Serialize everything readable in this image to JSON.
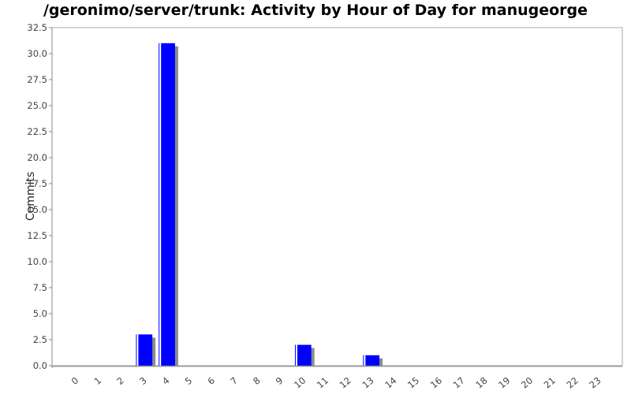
{
  "chart_data": {
    "type": "bar",
    "title": "/geronimo/server/trunk: Activity by Hour of Day for manugeorge",
    "xlabel": "",
    "ylabel": "Commits",
    "categories": [
      "0",
      "1",
      "2",
      "3",
      "4",
      "5",
      "6",
      "7",
      "8",
      "9",
      "10",
      "11",
      "12",
      "13",
      "14",
      "15",
      "16",
      "17",
      "18",
      "19",
      "20",
      "21",
      "22",
      "23"
    ],
    "values": [
      0,
      0,
      0,
      3,
      31,
      0,
      0,
      0,
      0,
      0,
      2,
      0,
      0,
      1,
      0,
      0,
      0,
      0,
      0,
      0,
      0,
      0,
      0,
      0
    ],
    "ylim": [
      0,
      32.5
    ],
    "yticks": [
      "0.0",
      "2.5",
      "5.0",
      "7.5",
      "10.0",
      "12.5",
      "15.0",
      "17.5",
      "20.0",
      "22.5",
      "25.0",
      "27.5",
      "30.0",
      "32.5"
    ],
    "grid": false,
    "colors": {
      "bar": "#0000ff",
      "shadow": "#8c8c8c",
      "axis": "#888888",
      "plot_border": "#aaaaaa"
    }
  }
}
